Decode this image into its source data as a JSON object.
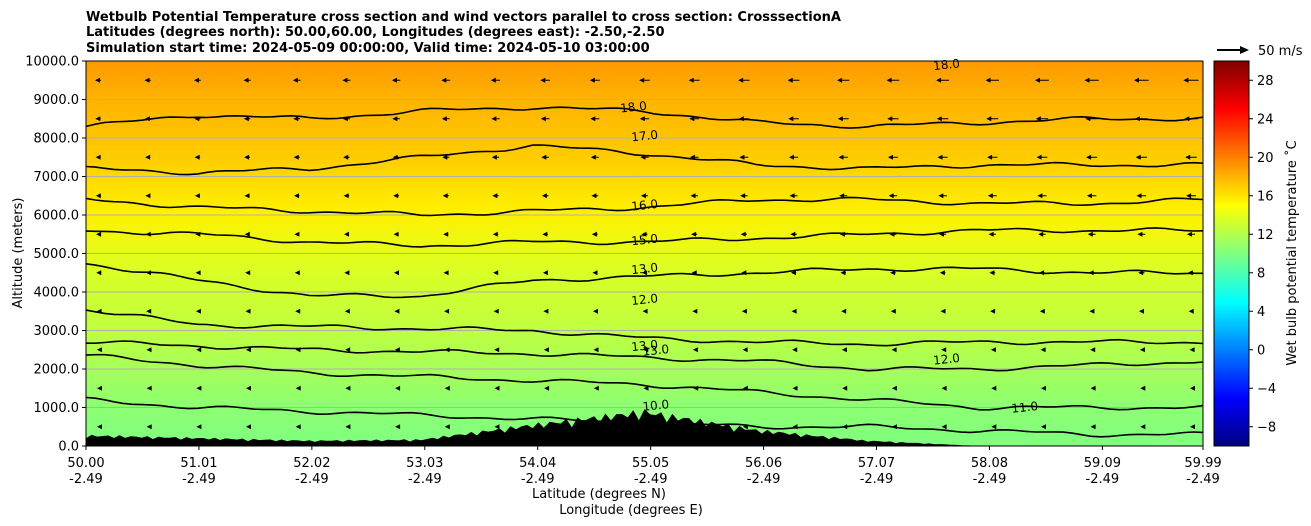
{
  "chart_data": {
    "type": "heatmap",
    "title_lines": [
      "Wetbulb Potential Temperature cross section and wind vectors parallel to cross section: CrosssectionA",
      "Latitudes (degrees north): 50.00,60.00, Longitudes (degrees east): -2.50,-2.50",
      "Simulation start time: 2024-05-09 00:00:00, Valid time: 2024-05-10 03:00:00"
    ],
    "xlabel_lines": [
      "Latitude (degrees N)",
      "Longitude (degrees E)"
    ],
    "ylabel": "Altitude (meters)",
    "x_ticks": [
      {
        "lat": "50.00",
        "lon": "-2.49"
      },
      {
        "lat": "51.01",
        "lon": "-2.49"
      },
      {
        "lat": "52.02",
        "lon": "-2.49"
      },
      {
        "lat": "53.03",
        "lon": "-2.49"
      },
      {
        "lat": "54.04",
        "lon": "-2.49"
      },
      {
        "lat": "55.05",
        "lon": "-2.49"
      },
      {
        "lat": "56.06",
        "lon": "-2.49"
      },
      {
        "lat": "57.07",
        "lon": "-2.49"
      },
      {
        "lat": "58.08",
        "lon": "-2.49"
      },
      {
        "lat": "59.09",
        "lon": "-2.49"
      },
      {
        "lat": "59.99",
        "lon": "-2.49"
      }
    ],
    "xlim": [
      50.0,
      59.99
    ],
    "ylim": [
      0,
      10000
    ],
    "y_ticks": [
      "0.0",
      "1000.0",
      "2000.0",
      "3000.0",
      "4000.0",
      "5000.0",
      "6000.0",
      "7000.0",
      "8000.0",
      "9000.0",
      "10000.0"
    ],
    "grid": "horizontal",
    "colorbar": {
      "label": "Wet bulb potential temperature $^\\circ$C",
      "label_text": "Wet bulb potential temperature ˚C",
      "range": [
        -10,
        30
      ],
      "ticks": [
        "−8",
        "−4",
        "0",
        "4",
        "8",
        "12",
        "16",
        "20",
        "24",
        "28"
      ],
      "colormap": "jet"
    },
    "quiver_key": {
      "label": "50 m/s"
    },
    "wind_direction": "southward (toward 50N) in upper levels",
    "contour_levels": [
      {
        "value": 18.0,
        "altitude_m": [
          8300,
          8600,
          8500,
          8700,
          8800,
          8700,
          8400,
          8300,
          8400,
          8500,
          8500
        ]
      },
      {
        "value": 17.0,
        "altitude_m": [
          7200,
          7100,
          7200,
          7500,
          7800,
          7600,
          7300,
          7200,
          7300,
          7300,
          7300
        ]
      },
      {
        "value": 16.0,
        "altitude_m": [
          6400,
          6200,
          6100,
          6000,
          6100,
          6200,
          6400,
          6400,
          6300,
          6300,
          6400
        ]
      },
      {
        "value": 15.0,
        "altitude_m": [
          5600,
          5500,
          5300,
          5200,
          5300,
          5300,
          5400,
          5500,
          5600,
          5600,
          5600
        ]
      },
      {
        "value": 13.0,
        "altitude_m": [
          4750,
          4300,
          3900,
          3900,
          4300,
          4400,
          4500,
          4600,
          4600,
          4500,
          4500
        ]
      },
      {
        "value": 13.0,
        "altitude_m": [
          3550,
          3150,
          3100,
          3050,
          3000,
          2800,
          2700,
          2650,
          2700,
          2700,
          2700
        ]
      },
      {
        "value": 12.0,
        "altitude_m": [
          2700,
          2600,
          2500,
          2450,
          2400,
          2300,
          2200,
          2000,
          2000,
          2100,
          2200
        ]
      },
      {
        "value": 11.0,
        "altitude_m": [
          2350,
          2100,
          1900,
          1800,
          1700,
          1600,
          1400,
          1200,
          1000,
          1000,
          1000
        ]
      },
      {
        "value": 10.0,
        "altitude_m": [
          1200,
          1000,
          900,
          800,
          700,
          600,
          500,
          500,
          400,
          300,
          300
        ]
      }
    ],
    "terrain_m": [
      200,
      150,
      100,
      120,
      400,
      650,
      300,
      100,
      0,
      0,
      0
    ],
    "field_stops": [
      {
        "altitude_m": 10000,
        "value": 19.0
      },
      {
        "altitude_m": 9000,
        "value": 18.0
      },
      {
        "altitude_m": 7500,
        "value": 17.0
      },
      {
        "altitude_m": 6000,
        "value": 15.5
      },
      {
        "altitude_m": 4500,
        "value": 13.5
      },
      {
        "altitude_m": 3000,
        "value": 12.5
      },
      {
        "altitude_m": 2000,
        "value": 11.5
      },
      {
        "altitude_m": 1000,
        "value": 10.5
      },
      {
        "altitude_m": 0,
        "value": 10.0
      }
    ],
    "contour_labels": [
      {
        "text": "18.0",
        "x": 54.9,
        "y": 8700
      },
      {
        "text": "17.0",
        "x": 55.0,
        "y": 7950
      },
      {
        "text": "16.0",
        "x": 55.0,
        "y": 6150
      },
      {
        "text": "15.0",
        "x": 55.0,
        "y": 5250
      },
      {
        "text": "13.0",
        "x": 55.0,
        "y": 4500
      },
      {
        "text": "12.0",
        "x": 55.0,
        "y": 3700
      },
      {
        "text": "13.0",
        "x": 55.0,
        "y": 2500
      },
      {
        "text": "13.0",
        "x": 55.1,
        "y": 2380
      },
      {
        "text": "12.0",
        "x": 57.7,
        "y": 2150
      },
      {
        "text": "11.0",
        "x": 58.4,
        "y": 900
      },
      {
        "text": "10.0",
        "x": 55.1,
        "y": 950
      },
      {
        "text": "18.0",
        "x": 57.7,
        "y": 9800
      }
    ]
  }
}
